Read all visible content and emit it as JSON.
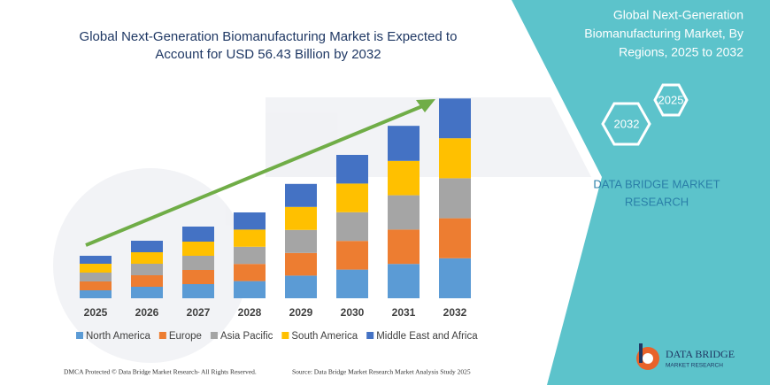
{
  "chart_data": {
    "type": "stacked_bar",
    "title_lines": [
      "Global Next-Generation Biomanufacturing Market is Expected to",
      "Account for USD 56.43 Billion by 2032"
    ],
    "categories": [
      "2025",
      "2026",
      "2027",
      "2028",
      "2029",
      "2030",
      "2031",
      "2032"
    ],
    "series": [
      {
        "name": "North America",
        "color": "#5b9bd5",
        "values": [
          2.25,
          3.25,
          4,
          4.85,
          6.4,
          8.1,
          9.7,
          11.3
        ]
      },
      {
        "name": "Europe",
        "color": "#ed7d31",
        "values": [
          2.5,
          3.25,
          4,
          4.85,
          6.4,
          8.1,
          9.7,
          11.3
        ]
      },
      {
        "name": "Asia Pacific",
        "color": "#a5a5a5",
        "values": [
          2.5,
          3.25,
          4,
          4.85,
          6.5,
          8.1,
          9.7,
          11.3
        ]
      },
      {
        "name": "South America",
        "color": "#ffc000",
        "values": [
          2.5,
          3.25,
          4,
          4.85,
          6.5,
          8.1,
          9.7,
          11.3
        ]
      },
      {
        "name": "Middle East and Africa",
        "color": "#4472c4",
        "values": [
          2.25,
          3.25,
          4.25,
          4.85,
          6.5,
          8.1,
          9.9,
          11.23
        ]
      }
    ],
    "ylim": [
      0,
      60
    ],
    "grid": false,
    "legend": "bottom"
  },
  "panel": {
    "title_lines": [
      "Global Next-Generation",
      "Biomanufacturing Market, By",
      "Regions, 2025 to 2032"
    ],
    "badges": [
      "2025",
      "2032"
    ],
    "brand_lines": [
      "DATA BRIDGE MARKET",
      "RESEARCH"
    ]
  },
  "footer": {
    "left": "DMCA Protected © Data Bridge Market Research-  All Rights Reserved.",
    "right": "Source: Data Bridge Market Research  Market Analysis Study 2025"
  },
  "logo": {
    "name": "DATA BRIDGE",
    "tagline": "MARKET RESEARCH"
  }
}
